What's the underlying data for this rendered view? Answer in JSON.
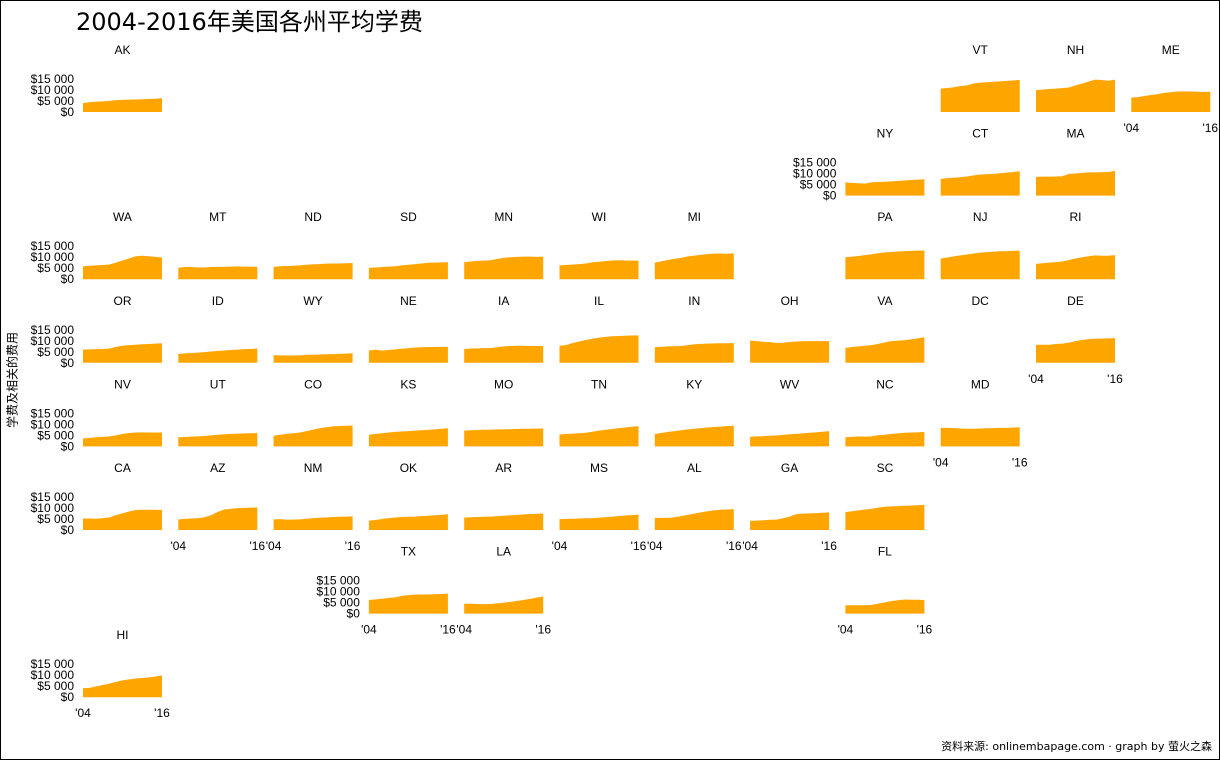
{
  "chart_data": {
    "type": "area",
    "title": "2004-2016年美国各州平均学费",
    "ylabel": "学费及相关的费用",
    "caption": "资料来源: onlinembapage.com · graph by 萤火之森",
    "x": [
      "2004",
      "2005",
      "2006",
      "2007",
      "2008",
      "2009",
      "2010",
      "2011",
      "2012",
      "2013",
      "2014",
      "2015",
      "2016"
    ],
    "x_tick_labels": [
      "'04",
      "'16"
    ],
    "y_tick_labels": [
      "$0",
      "$5 000",
      "$10 000",
      "$15 000"
    ],
    "ylim": [
      0,
      17000
    ],
    "color": "#FFA500",
    "grid": false,
    "series": [
      {
        "name": "AK",
        "values": [
          4200,
          4600,
          4900,
          5000,
          5200,
          5600,
          5700,
          5800,
          5900,
          6000,
          6100,
          6200,
          6500
        ]
      },
      {
        "name": "VT",
        "values": [
          11000,
          11300,
          11600,
          12200,
          12500,
          13400,
          13800,
          14000,
          14200,
          14400,
          14600,
          14800,
          15100
        ]
      },
      {
        "name": "NH",
        "values": [
          10200,
          10500,
          10800,
          11000,
          11200,
          11500,
          12500,
          13300,
          14300,
          15200,
          15000,
          14700,
          15200
        ]
      },
      {
        "name": "ME",
        "values": [
          6800,
          7000,
          7500,
          8000,
          8400,
          9000,
          9300,
          9600,
          9700,
          9600,
          9500,
          9400,
          9500
        ]
      },
      {
        "name": "NY",
        "values": [
          6200,
          6000,
          5800,
          5600,
          6300,
          6400,
          6500,
          6700,
          6900,
          7100,
          7300,
          7500,
          7700
        ]
      },
      {
        "name": "CT",
        "values": [
          7800,
          8200,
          8400,
          8700,
          9000,
          9500,
          9900,
          10000,
          10200,
          10500,
          10800,
          11000,
          11500
        ]
      },
      {
        "name": "MA",
        "values": [
          8800,
          8900,
          8900,
          9000,
          9100,
          10200,
          10400,
          10700,
          10900,
          10900,
          11000,
          11100,
          11600
        ]
      },
      {
        "name": "WA",
        "values": [
          6100,
          6300,
          6500,
          6700,
          6900,
          7800,
          8800,
          9700,
          10800,
          11000,
          10800,
          10500,
          10200
        ]
      },
      {
        "name": "MT",
        "values": [
          5400,
          5700,
          5700,
          5500,
          5500,
          5700,
          5800,
          5800,
          5900,
          6000,
          5900,
          5900,
          5800
        ]
      },
      {
        "name": "ND",
        "values": [
          5800,
          6100,
          6200,
          6300,
          6500,
          6800,
          7000,
          7100,
          7300,
          7400,
          7400,
          7500,
          7600
        ]
      },
      {
        "name": "SD",
        "values": [
          5300,
          5500,
          5700,
          5900,
          6100,
          6500,
          6800,
          7100,
          7400,
          7700,
          7800,
          7900,
          8000
        ]
      },
      {
        "name": "MN",
        "values": [
          8000,
          8300,
          8600,
          8700,
          8900,
          9500,
          10000,
          10300,
          10500,
          10600,
          10600,
          10500,
          10600
        ]
      },
      {
        "name": "WI",
        "values": [
          6500,
          6700,
          6900,
          7100,
          7400,
          7900,
          8200,
          8500,
          8800,
          8900,
          8800,
          8700,
          8700
        ]
      },
      {
        "name": "MI",
        "values": [
          7800,
          8400,
          9000,
          9600,
          10000,
          10700,
          11100,
          11400,
          11800,
          12000,
          12100,
          11900,
          12200
        ]
      },
      {
        "name": "PA",
        "values": [
          10300,
          10600,
          10900,
          11300,
          11700,
          12200,
          12600,
          12800,
          13000,
          13200,
          13300,
          13400,
          13500
        ]
      },
      {
        "name": "NJ",
        "values": [
          9700,
          10200,
          10700,
          11200,
          11600,
          12100,
          12500,
          12700,
          12900,
          13100,
          13200,
          13300,
          13400
        ]
      },
      {
        "name": "RI",
        "values": [
          7200,
          7500,
          7800,
          8000,
          8300,
          9000,
          9700,
          10300,
          10800,
          11200,
          11000,
          11000,
          11300
        ]
      },
      {
        "name": "OR",
        "values": [
          6200,
          6300,
          6400,
          6500,
          6700,
          7500,
          8000,
          8300,
          8500,
          8700,
          8800,
          9000,
          9200
        ]
      },
      {
        "name": "ID",
        "values": [
          4200,
          4400,
          4600,
          4800,
          5000,
          5300,
          5600,
          5800,
          6000,
          6200,
          6400,
          6500,
          6700
        ]
      },
      {
        "name": "WY",
        "values": [
          3600,
          3500,
          3400,
          3400,
          3500,
          3700,
          3800,
          3900,
          4000,
          4100,
          4200,
          4300,
          4500
        ]
      },
      {
        "name": "NE",
        "values": [
          5800,
          6200,
          5700,
          6000,
          6300,
          6600,
          6900,
          7100,
          7300,
          7400,
          7400,
          7500,
          7500
        ]
      },
      {
        "name": "IA",
        "values": [
          6500,
          6700,
          6800,
          6900,
          6900,
          7300,
          7700,
          7900,
          8000,
          8000,
          7900,
          7900,
          7900
        ]
      },
      {
        "name": "IL",
        "values": [
          8000,
          8300,
          9300,
          10000,
          10700,
          11300,
          11800,
          12200,
          12500,
          12600,
          12700,
          12800,
          12900
        ]
      },
      {
        "name": "IN",
        "values": [
          7300,
          7500,
          7700,
          7800,
          7900,
          8300,
          8700,
          8900,
          9000,
          9100,
          9200,
          9200,
          9300
        ]
      },
      {
        "name": "OH",
        "values": [
          10500,
          10200,
          9900,
          9700,
          9300,
          9400,
          9800,
          10000,
          10100,
          10200,
          10200,
          10200,
          10200
        ]
      },
      {
        "name": "VA",
        "values": [
          7000,
          7400,
          7700,
          8000,
          8300,
          8900,
          9600,
          10200,
          10400,
          10600,
          11000,
          11500,
          12000
        ]
      },
      {
        "name": "DE",
        "values": [
          8400,
          8500,
          8500,
          8800,
          9000,
          9500,
          10200,
          10700,
          11100,
          11300,
          11400,
          11500,
          11600
        ]
      },
      {
        "name": "NV",
        "values": [
          3700,
          4000,
          4300,
          4500,
          4700,
          5200,
          5800,
          6300,
          6500,
          6600,
          6500,
          6500,
          6500
        ]
      },
      {
        "name": "UT",
        "values": [
          4300,
          4400,
          4600,
          4700,
          4900,
          5200,
          5500,
          5700,
          5900,
          6000,
          6100,
          6200,
          6300
        ]
      },
      {
        "name": "CO",
        "values": [
          5000,
          5500,
          5900,
          6200,
          6500,
          7200,
          7900,
          8500,
          9000,
          9400,
          9600,
          9700,
          9800
        ]
      },
      {
        "name": "KS",
        "values": [
          5500,
          5900,
          6200,
          6500,
          6800,
          7000,
          7200,
          7400,
          7600,
          7800,
          8000,
          8300,
          8500
        ]
      },
      {
        "name": "MO",
        "values": [
          7400,
          7600,
          7700,
          7800,
          7900,
          8000,
          8000,
          8100,
          8200,
          8300,
          8300,
          8400,
          8400
        ]
      },
      {
        "name": "TN",
        "values": [
          5600,
          5800,
          6000,
          6200,
          6400,
          6900,
          7400,
          7800,
          8200,
          8600,
          8900,
          9200,
          9500
        ]
      },
      {
        "name": "KY",
        "values": [
          5800,
          6300,
          6800,
          7200,
          7600,
          8000,
          8300,
          8600,
          8900,
          9100,
          9300,
          9500,
          9700
        ]
      },
      {
        "name": "WV",
        "values": [
          4500,
          4700,
          4800,
          5000,
          5100,
          5400,
          5700,
          5900,
          6100,
          6400,
          6600,
          6900,
          7200
        ]
      },
      {
        "name": "NC",
        "values": [
          4300,
          4500,
          4700,
          4600,
          4700,
          5300,
          5500,
          5900,
          6100,
          6400,
          6500,
          6600,
          6800
        ]
      },
      {
        "name": "MD",
        "values": [
          8700,
          8700,
          8600,
          8400,
          8300,
          8300,
          8400,
          8500,
          8600,
          8700,
          8700,
          8800,
          9000
        ]
      },
      {
        "name": "CA",
        "values": [
          5400,
          5400,
          5300,
          5600,
          5900,
          7000,
          7800,
          8700,
          9400,
          9500,
          9500,
          9500,
          9400
        ]
      },
      {
        "name": "AZ",
        "values": [
          5000,
          5200,
          5400,
          5600,
          6000,
          7000,
          8500,
          9600,
          10000,
          10300,
          10400,
          10500,
          10600
        ]
      },
      {
        "name": "NM",
        "values": [
          5000,
          5100,
          4800,
          4900,
          5000,
          5300,
          5600,
          5800,
          5900,
          6100,
          6200,
          6300,
          6400
        ]
      },
      {
        "name": "OK",
        "values": [
          4400,
          4700,
          5200,
          5600,
          5900,
          6100,
          6200,
          6300,
          6500,
          6700,
          6900,
          7100,
          7400
        ]
      },
      {
        "name": "AR",
        "values": [
          5800,
          6000,
          6100,
          6200,
          6300,
          6500,
          6700,
          6900,
          7100,
          7300,
          7500,
          7600,
          7800
        ]
      },
      {
        "name": "MS",
        "values": [
          5100,
          5200,
          5300,
          5400,
          5500,
          5600,
          5800,
          6000,
          6300,
          6600,
          6800,
          7000,
          7200
        ]
      },
      {
        "name": "AL",
        "values": [
          5700,
          5700,
          5700,
          6000,
          6500,
          7100,
          7700,
          8300,
          8800,
          9200,
          9500,
          9600,
          9800
        ]
      },
      {
        "name": "GA",
        "values": [
          4300,
          4400,
          4600,
          4800,
          4900,
          5500,
          6300,
          7400,
          7700,
          7800,
          7900,
          8100,
          8300
        ]
      },
      {
        "name": "SC",
        "values": [
          8400,
          8800,
          9200,
          9600,
          10000,
          10500,
          10900,
          11100,
          11200,
          11400,
          11500,
          11600,
          11800
        ]
      },
      {
        "name": "TX",
        "values": [
          6400,
          6700,
          7000,
          7400,
          7600,
          8300,
          8700,
          8900,
          9000,
          9000,
          9100,
          9200,
          9400
        ]
      },
      {
        "name": "LA",
        "values": [
          4600,
          4600,
          4500,
          4400,
          4500,
          4800,
          5100,
          5500,
          5900,
          6400,
          6900,
          7500,
          8100
        ]
      },
      {
        "name": "FL",
        "values": [
          3900,
          3900,
          3900,
          3900,
          4100,
          4700,
          5300,
          5900,
          6300,
          6600,
          6500,
          6500,
          6400
        ]
      },
      {
        "name": "HI",
        "values": [
          4200,
          4400,
          5100,
          5700,
          6400,
          7200,
          7900,
          8400,
          8800,
          9000,
          9300,
          9700,
          10200
        ]
      }
    ]
  }
}
